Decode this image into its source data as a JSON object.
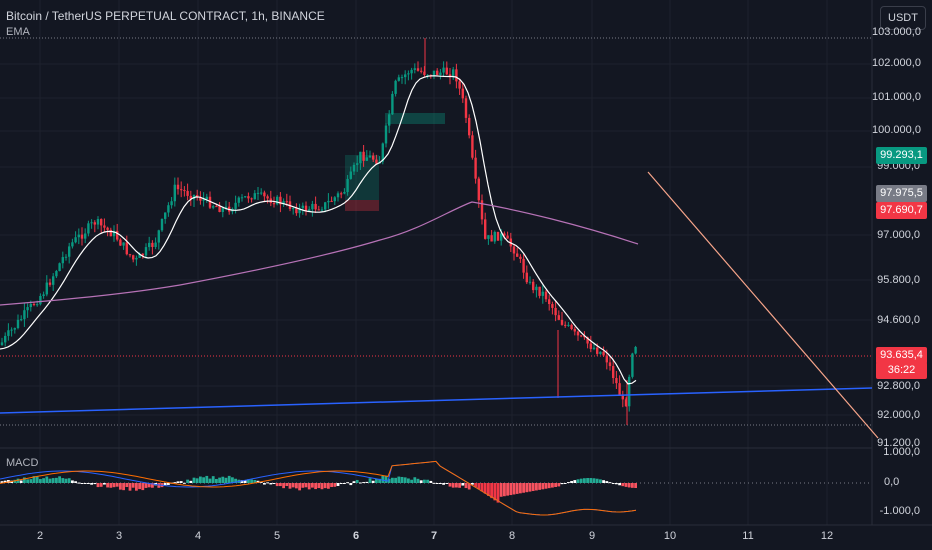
{
  "header": {
    "symbol_title": "Bitcoin / TetherUS PERPETUAL CONTRACT, 1h, BINANCE",
    "indicator_1": "EMA",
    "indicator_2": "MACD"
  },
  "currency_button": "USDT",
  "price_axis": {
    "ticks": [
      "103.000,0",
      "102.000,0",
      "101.000,0",
      "100.000,0",
      "99.000,0",
      "97.000,0",
      "95.800,0",
      "94.600,0",
      "92.800,0",
      "92.000,0",
      "91.200,0"
    ],
    "tags": [
      {
        "label": "99.293,1",
        "color": "#089981"
      },
      {
        "label": "97.975,5",
        "color": "#787b86"
      },
      {
        "label": "97.690,7",
        "color": "#f23645"
      },
      {
        "label": "93.635,4",
        "color": "#f23645"
      },
      {
        "label": "36:22",
        "color": "#f23645"
      }
    ]
  },
  "macd_axis": {
    "ticks": [
      "1.000,0",
      "0,0",
      "-1.000,0"
    ]
  },
  "time_axis": {
    "ticks": [
      "2",
      "3",
      "4",
      "5",
      "6",
      "7",
      "8",
      "9",
      "10",
      "11",
      "12"
    ]
  },
  "colors": {
    "up": "#089981",
    "down": "#f23645",
    "bg": "#131722",
    "ema_fast": "#ffffff",
    "ema_slow": "#b672b6",
    "trendline": "#2962ff",
    "projection": "#f7a58a",
    "macd": "#2962ff",
    "signal": "#ff6d00"
  }
}
